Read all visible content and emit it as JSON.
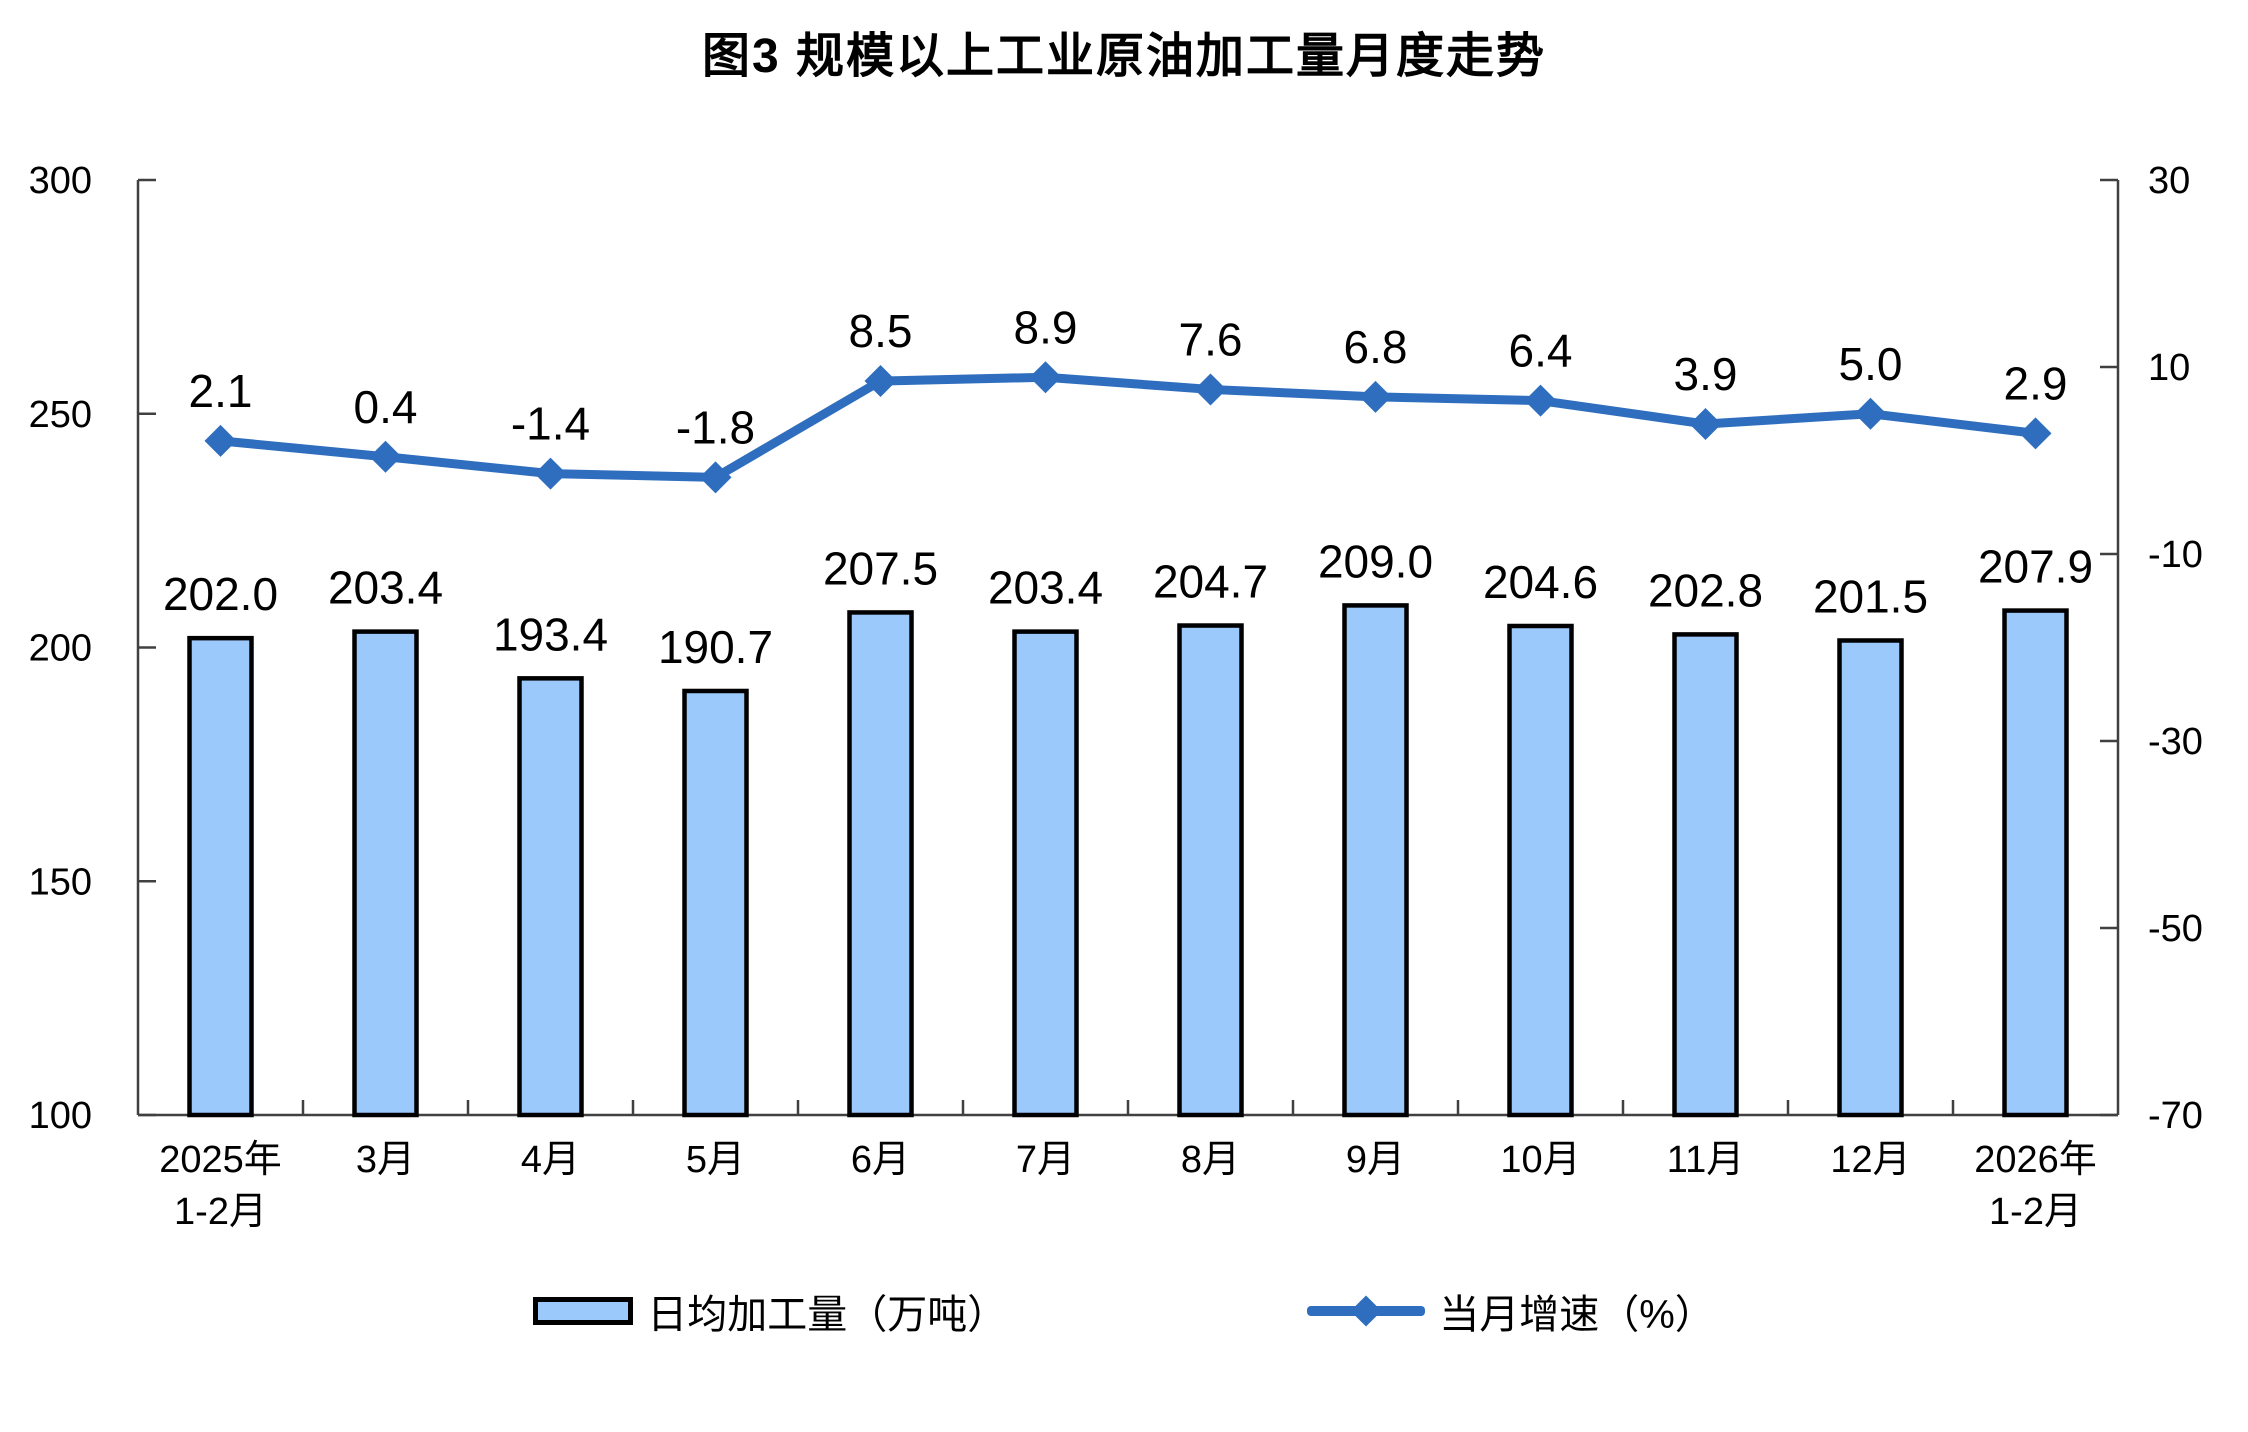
{
  "title": "图3 规模以上工业原油加工量月度走势",
  "chart_data": {
    "type": "bar+line combo",
    "title": "图3 规模以上工业原油加工量月度走势",
    "categories": [
      "2025年\n1-2月",
      "3月",
      "4月",
      "5月",
      "6月",
      "7月",
      "8月",
      "9月",
      "10月",
      "11月",
      "12月",
      "2026年\n1-2月"
    ],
    "series": [
      {
        "name": "日均加工量（万吨）",
        "type": "bar",
        "axis": "left",
        "color": "#9CC9FC",
        "border_color": "#000000",
        "values": [
          202.0,
          203.4,
          193.4,
          190.7,
          207.5,
          203.4,
          204.7,
          209.0,
          204.6,
          202.8,
          201.5,
          207.9
        ]
      },
      {
        "name": "当月增速（%）",
        "type": "line",
        "axis": "right",
        "color": "#2F6EBE",
        "marker": "diamond",
        "values": [
          2.1,
          0.4,
          -1.4,
          -1.8,
          8.5,
          8.9,
          7.6,
          6.8,
          6.4,
          3.9,
          5.0,
          2.9
        ]
      }
    ],
    "left_axis": {
      "min": 100,
      "max": 300,
      "ticks": [
        300,
        250,
        200,
        150,
        100
      ]
    },
    "right_axis": {
      "min": -70,
      "max": 30,
      "ticks": [
        30,
        10,
        -10,
        -30,
        -50,
        -70
      ]
    },
    "grid": false,
    "legend_position": "bottom",
    "data_labels": true,
    "label_decimals": 1
  },
  "legend": {
    "bar_label": "日均加工量（万吨）",
    "line_label": "当月增速（%）"
  },
  "colors": {
    "bar_fill": "#9CC9FC",
    "bar_border": "#000000",
    "line": "#2F6EBE",
    "axis": "#404040",
    "text": "#000000"
  }
}
